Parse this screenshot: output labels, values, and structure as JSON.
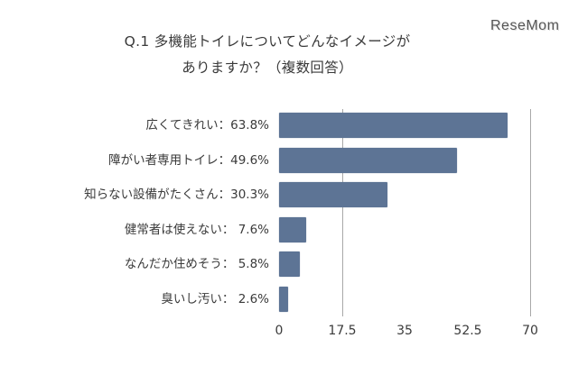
{
  "header": {
    "title_line1": "Q.1 多機能トイレについてどんなイメージが",
    "title_line2": "ありますか？（複数回答）",
    "brand": "ReseMom"
  },
  "style": {
    "bar_color": "#5d7495",
    "grid_color": "#a8a8a8"
  },
  "labels": [
    "広くてきれい：63.8%",
    "障がい者専用トイレ：49.6%",
    "知らない設備がたくさん：30.3%",
    "健常者は使えない：  7.6%",
    "なんだか住めそう：  5.8%",
    "臭いし汚い：  2.6%"
  ],
  "ticks": [
    "0",
    "17.5",
    "35",
    "52.5",
    "70"
  ],
  "chart_data": {
    "type": "bar",
    "orientation": "horizontal",
    "title": "Q.1 多機能トイレについてどんなイメージがありますか？（複数回答）",
    "categories": [
      "広くてきれい",
      "障がい者専用トイレ",
      "知らない設備がたくさん",
      "健常者は使えない",
      "なんだか住めそう",
      "臭いし汚い"
    ],
    "values": [
      63.8,
      49.6,
      30.3,
      7.6,
      5.8,
      2.6
    ],
    "unit": "%",
    "xlabel": "",
    "ylabel": "",
    "xlim": [
      0,
      70
    ],
    "xticks": [
      0,
      17.5,
      35,
      52.5,
      70
    ],
    "gridlines_at": [
      17.5,
      70
    ],
    "legend": null
  }
}
